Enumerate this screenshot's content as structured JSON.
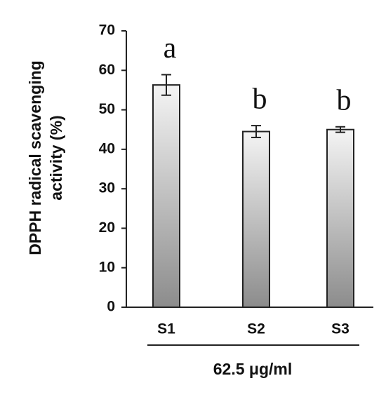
{
  "chart_data": {
    "type": "bar",
    "ylabel": [
      "DPPH radical scavenging",
      "activity (%)"
    ],
    "xlabel": "62.5 μg/ml",
    "categories": [
      "S1",
      "S2",
      "S3"
    ],
    "values": [
      56.3,
      44.5,
      45.0
    ],
    "errors": [
      2.6,
      1.5,
      0.7
    ],
    "annotations": [
      "a",
      "b",
      "b"
    ],
    "color": "#8c8c8c",
    "ylim": [
      0,
      70
    ],
    "yticks": [
      0,
      10,
      20,
      30,
      40,
      50,
      60,
      70
    ]
  }
}
